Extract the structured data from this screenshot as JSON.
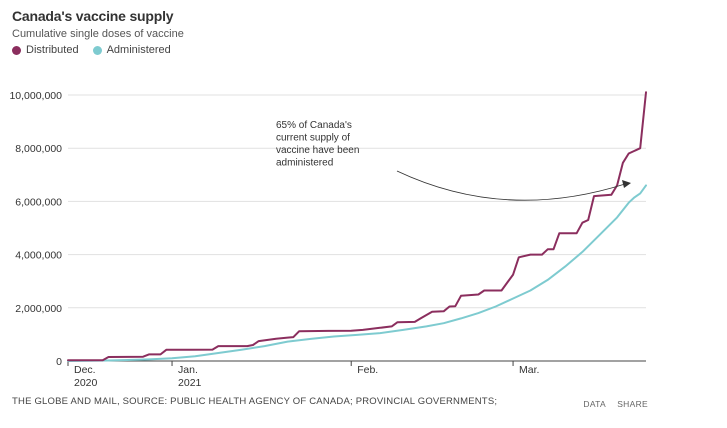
{
  "header": {
    "title": "Canada's vaccine supply",
    "subtitle": "Cumulative single doses of vaccine"
  },
  "legend": [
    {
      "label": "Distributed",
      "color": "#8b2e5e"
    },
    {
      "label": "Administered",
      "color": "#7ecbd0"
    }
  ],
  "footer": {
    "source": "THE GLOBE AND MAIL, SOURCE: PUBLIC HEALTH AGENCY OF CANADA; PROVINCIAL GOVERNMENTS;",
    "data_link": "DATA",
    "share_link": "SHARE"
  },
  "chart_data": {
    "type": "line",
    "ylim": [
      0,
      10000000
    ],
    "yticks": [
      0,
      2000000,
      4000000,
      6000000,
      8000000,
      10000000
    ],
    "ytick_labels": [
      "0",
      "2,000,000",
      "4,000,000",
      "6,000,000",
      "8,000,000",
      "10,000,000"
    ],
    "x_start": "2020-12-14",
    "x_end": "2021-03-24",
    "xticks": [
      {
        "date": "2020-12-14",
        "line1": "Dec.",
        "line2": "2020"
      },
      {
        "date": "2021-01-01",
        "line1": "Jan.",
        "line2": "2021"
      },
      {
        "date": "2021-02-01",
        "line1": "Feb.",
        "line2": ""
      },
      {
        "date": "2021-03-01",
        "line1": "Mar.",
        "line2": ""
      }
    ],
    "grid": true,
    "annotation": {
      "text": [
        "65% of Canada's",
        "current supply of",
        "vaccine have been",
        "administered"
      ]
    },
    "series": [
      {
        "name": "Distributed",
        "color": "#8b2e5e",
        "points": [
          [
            "2020-12-14",
            30000
          ],
          [
            "2020-12-20",
            30000
          ],
          [
            "2020-12-21",
            150000
          ],
          [
            "2020-12-27",
            160000
          ],
          [
            "2020-12-28",
            250000
          ],
          [
            "2020-12-30",
            250000
          ],
          [
            "2020-12-31",
            420000
          ],
          [
            "2021-01-03",
            420000
          ],
          [
            "2021-01-04",
            420000
          ],
          [
            "2021-01-08",
            430000
          ],
          [
            "2021-01-09",
            560000
          ],
          [
            "2021-01-14",
            560000
          ],
          [
            "2021-01-15",
            600000
          ],
          [
            "2021-01-16",
            750000
          ],
          [
            "2021-01-19",
            840000
          ],
          [
            "2021-01-21",
            880000
          ],
          [
            "2021-01-22",
            900000
          ],
          [
            "2021-01-23",
            1120000
          ],
          [
            "2021-01-28",
            1130000
          ],
          [
            "2021-02-01",
            1140000
          ],
          [
            "2021-02-03",
            1170000
          ],
          [
            "2021-02-06",
            1250000
          ],
          [
            "2021-02-08",
            1300000
          ],
          [
            "2021-02-09",
            1460000
          ],
          [
            "2021-02-12",
            1470000
          ],
          [
            "2021-02-13",
            1600000
          ],
          [
            "2021-02-15",
            1850000
          ],
          [
            "2021-02-17",
            1870000
          ],
          [
            "2021-02-18",
            2050000
          ],
          [
            "2021-02-19",
            2060000
          ],
          [
            "2021-02-20",
            2450000
          ],
          [
            "2021-02-23",
            2500000
          ],
          [
            "2021-02-24",
            2650000
          ],
          [
            "2021-02-27",
            2650000
          ],
          [
            "2021-02-28",
            2950000
          ],
          [
            "2021-03-01",
            3250000
          ],
          [
            "2021-03-02",
            3900000
          ],
          [
            "2021-03-04",
            4000000
          ],
          [
            "2021-03-06",
            4000000
          ],
          [
            "2021-03-07",
            4200000
          ],
          [
            "2021-03-08",
            4200000
          ],
          [
            "2021-03-09",
            4800000
          ],
          [
            "2021-03-12",
            4800000
          ],
          [
            "2021-03-13",
            5200000
          ],
          [
            "2021-03-14",
            5300000
          ],
          [
            "2021-03-15",
            6200000
          ],
          [
            "2021-03-18",
            6250000
          ],
          [
            "2021-03-19",
            6600000
          ],
          [
            "2021-03-20",
            7450000
          ],
          [
            "2021-03-21",
            7800000
          ],
          [
            "2021-03-22",
            7900000
          ],
          [
            "2021-03-23",
            8000000
          ],
          [
            "2021-03-24",
            10100000
          ]
        ]
      },
      {
        "name": "Administered",
        "color": "#7ecbd0",
        "points": [
          [
            "2020-12-14",
            0
          ],
          [
            "2020-12-21",
            20000
          ],
          [
            "2020-12-28",
            60000
          ],
          [
            "2021-01-01",
            100000
          ],
          [
            "2021-01-05",
            180000
          ],
          [
            "2021-01-09",
            300000
          ],
          [
            "2021-01-13",
            420000
          ],
          [
            "2021-01-17",
            560000
          ],
          [
            "2021-01-21",
            730000
          ],
          [
            "2021-01-25",
            830000
          ],
          [
            "2021-01-29",
            920000
          ],
          [
            "2021-02-02",
            980000
          ],
          [
            "2021-02-06",
            1050000
          ],
          [
            "2021-02-10",
            1170000
          ],
          [
            "2021-02-14",
            1300000
          ],
          [
            "2021-02-17",
            1420000
          ],
          [
            "2021-02-20",
            1600000
          ],
          [
            "2021-02-23",
            1800000
          ],
          [
            "2021-02-26",
            2050000
          ],
          [
            "2021-03-01",
            2350000
          ],
          [
            "2021-03-04",
            2650000
          ],
          [
            "2021-03-07",
            3050000
          ],
          [
            "2021-03-10",
            3550000
          ],
          [
            "2021-03-13",
            4100000
          ],
          [
            "2021-03-16",
            4750000
          ],
          [
            "2021-03-19",
            5400000
          ],
          [
            "2021-03-21",
            5950000
          ],
          [
            "2021-03-22",
            6150000
          ],
          [
            "2021-03-23",
            6300000
          ],
          [
            "2021-03-24",
            6600000
          ]
        ]
      }
    ]
  }
}
